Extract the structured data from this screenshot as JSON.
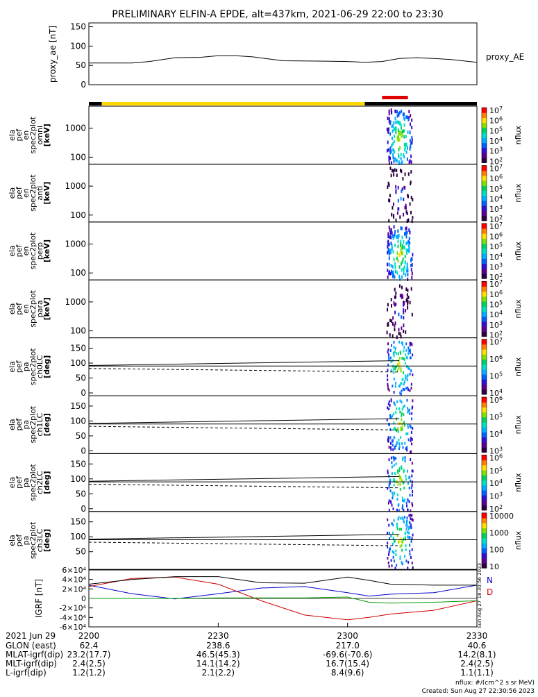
{
  "title": "PRELIMINARY ELFIN-A EPDE, alt=437km, 2021-06-29 22:00 to 23:30",
  "colors": {
    "sunlit": "#ffd700",
    "dark": "#000000",
    "science_bar": "#e00000",
    "bx": "#0000cc",
    "by": "#009900",
    "bz": "#cc0000",
    "btotal": "#000000"
  },
  "top_bar": {
    "segments": [
      {
        "label": "dark",
        "start": "22:00",
        "end": "22:03"
      },
      {
        "label": "sunlit",
        "start": "22:03",
        "end": "23:04"
      },
      {
        "label": "dark",
        "start": "23:04",
        "end": "23:30"
      }
    ],
    "science_zone": {
      "start": "23:08",
      "end": "23:14"
    }
  },
  "chart_data": [
    {
      "type": "line",
      "name": "proxy_ae",
      "ylabel": "proxy_ae [nT]",
      "legend": "proxy_AE",
      "ylim": [
        0,
        160
      ],
      "yticks": [
        "0",
        "50",
        "100",
        "150"
      ],
      "x_minutes": [
        0,
        10,
        14,
        20,
        26,
        30,
        34,
        38,
        45,
        55,
        60,
        64,
        68,
        72,
        76,
        80,
        84,
        90
      ],
      "values": [
        56,
        56,
        60,
        70,
        71,
        75,
        75,
        72,
        62,
        61,
        60,
        58,
        60,
        68,
        70,
        68,
        65,
        58
      ]
    },
    {
      "type": "heatmap",
      "panels": [
        {
          "ylabel": "ela pef en spec2plot omni [keV]",
          "yticks": [
            "100",
            "1000"
          ],
          "cbar_label": "nflux",
          "cbar_ticks": [
            "10^2",
            "10^3",
            "10^4",
            "10^5",
            "10^6",
            "10^7"
          ]
        },
        {
          "ylabel": "ela pef en spec2plot anti [keV]",
          "yticks": [
            "100",
            "1000"
          ],
          "cbar_label": "nflux",
          "cbar_ticks": [
            "10^2",
            "10^3",
            "10^4",
            "10^5",
            "10^6",
            "10^7"
          ]
        },
        {
          "ylabel": "ela pef en spec2plot perp [keV]",
          "yticks": [
            "100",
            "1000"
          ],
          "cbar_label": "nflux",
          "cbar_ticks": [
            "10^2",
            "10^3",
            "10^4",
            "10^5",
            "10^6",
            "10^7"
          ]
        },
        {
          "ylabel": "ela pef en spec2plot para [keV]",
          "yticks": [
            "100",
            "1000"
          ],
          "cbar_label": "nflux",
          "cbar_ticks": [
            "10^2",
            "10^3",
            "10^4",
            "10^5",
            "10^6",
            "10^7"
          ]
        },
        {
          "ylabel": "ela pef pa spec2plot ch0LC [deg]",
          "yticks": [
            "0",
            "50",
            "100",
            "150"
          ],
          "cbar_label": "nflux",
          "cbar_ticks": [
            "10^4",
            "10^5",
            "10^6",
            "10^7"
          ]
        },
        {
          "ylabel": "ela pef pa spec2plot ch1LC [deg]",
          "yticks": [
            "0",
            "50",
            "100",
            "150"
          ],
          "cbar_label": "nflux",
          "cbar_ticks": [
            "10^3",
            "10^4",
            "10^5",
            "10^6"
          ]
        },
        {
          "ylabel": "ela pef pa spec2plot ch2LC [deg]",
          "yticks": [
            "0",
            "50",
            "100",
            "150"
          ],
          "cbar_label": "nflux",
          "cbar_ticks": [
            "10^2",
            "10^3",
            "10^4",
            "10^5",
            "10^6"
          ]
        },
        {
          "ylabel": "ela pef pa spec2plot ch3LC [deg]",
          "yticks": [
            "50",
            "100",
            "150"
          ],
          "cbar_label": "nflux",
          "cbar_ticks": [
            "10",
            "100",
            "1000",
            "10000"
          ]
        }
      ]
    },
    {
      "type": "line",
      "name": "IGRF",
      "ylabel": "IGRF [nT]",
      "ylim": [
        -60000,
        60000
      ],
      "yticks": [
        "-6×10⁴",
        "-4×10⁴",
        "-2×10⁴",
        "0",
        "2×10⁴",
        "4×10⁴",
        "6×10⁴"
      ],
      "legend": [
        "N",
        "D"
      ],
      "x_minutes": [
        0,
        10,
        20,
        30,
        40,
        50,
        60,
        65,
        70,
        80,
        90
      ],
      "series": [
        {
          "name": "N",
          "values": [
            28000,
            10000,
            -1000,
            10000,
            22000,
            25000,
            12000,
            5000,
            9000,
            12000,
            28000
          ]
        },
        {
          "name": "D",
          "values": [
            25000,
            42000,
            45000,
            30000,
            -5000,
            -35000,
            -45000,
            -40000,
            -33000,
            -25000,
            -5000
          ]
        }
      ],
      "series_unlabeled": [
        [
          30000,
          40000,
          46000,
          46000,
          33000,
          32000,
          45000,
          38000,
          30000,
          28000,
          28000
        ],
        [
          0,
          0,
          0,
          1000,
          1000,
          1000,
          3000,
          -8000,
          -10000,
          -8000,
          -5000
        ]
      ]
    }
  ],
  "time_axis": {
    "row_label": "2021 Jun 29",
    "ticks": [
      "2200",
      "2230",
      "2300",
      "2330"
    ]
  },
  "ephemeris": {
    "labels": [
      "GLON (east)",
      "MLAT-igrf(dip)",
      "MLT-igrf(dip)",
      "L-igrf(dip)"
    ],
    "rows": [
      [
        "62.4",
        "238.6",
        "217.0",
        "40.6"
      ],
      [
        "23.2(17.7)",
        "46.5(45.3)",
        "-69.6(-70.6)",
        "14.2(8.1)"
      ],
      [
        "2.4(2.5)",
        "14.1(14.2)",
        "16.7(15.4)",
        "2.4(2.5)"
      ],
      [
        "1.2(1.2)",
        "2.1(2.2)",
        "8.4(9.6)",
        "1.1(1.1)"
      ]
    ]
  },
  "footer": {
    "units": "nflux: #/(cm^2 s sr MeV)",
    "created": "Created: Sun Aug 27 22:30:56 2023",
    "side_stamp": "Sun Aug 27 18:30:56 2023"
  }
}
